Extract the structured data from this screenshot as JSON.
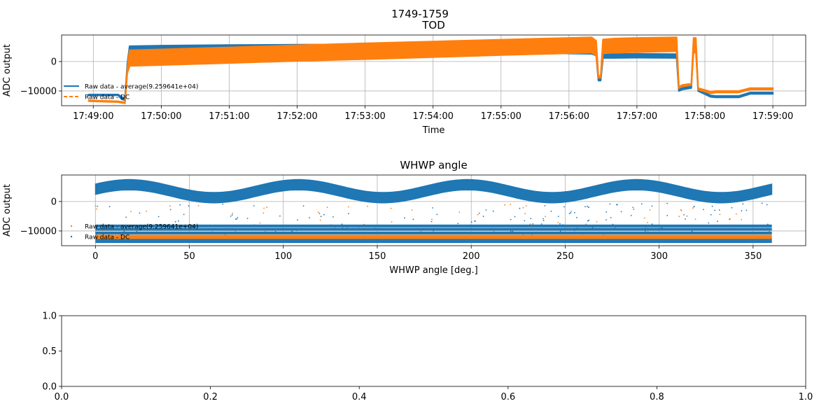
{
  "figure": {
    "suptitle": "1749-1759"
  },
  "colors": {
    "series1": "#1f77b4",
    "series2": "#ff7f0e",
    "grid": "#b0b0b0",
    "axes": "#000000"
  },
  "chart_data": [
    {
      "type": "line",
      "title": "TOD",
      "xlabel": "Time",
      "ylabel": "ADC output",
      "x_ticks": [
        "17:49:00",
        "17:50:00",
        "17:51:00",
        "17:52:00",
        "17:53:00",
        "17:54:00",
        "17:55:00",
        "17:56:00",
        "17:57:00",
        "17:58:00",
        "17:59:00"
      ],
      "xlim": [
        "17:48:32",
        "17:59:29"
      ],
      "y_ticks": [
        0,
        -10000
      ],
      "y_tick_labels": [
        "0",
        "−10000"
      ],
      "ylim": [
        -15000,
        9000
      ],
      "grid": true,
      "legend_position": "lower-left",
      "series": [
        {
          "name": "Raw data - average(9.259641e+04)",
          "style": "solid",
          "x": [
            "17:48:56",
            "17:49:22",
            "17:49:25",
            "17:49:28",
            "17:49:30",
            "17:49:32",
            "17:50:00",
            "17:51:00",
            "17:52:00",
            "17:53:00",
            "17:54:00",
            "17:55:00",
            "17:56:00",
            "17:56:20",
            "17:56:24",
            "17:56:26",
            "17:56:28",
            "17:56:30",
            "17:56:40",
            "17:57:00",
            "17:57:35",
            "17:57:37",
            "17:57:40",
            "17:57:48",
            "17:57:50",
            "17:57:52",
            "17:57:54",
            "17:58:05",
            "17:58:10",
            "17:58:30",
            "17:58:40",
            "17:59:00"
          ],
          "y_low": [
            -11500,
            -11500,
            -12800,
            -13200,
            -2000,
            3500,
            3500,
            3700,
            3900,
            4000,
            3700,
            3300,
            2700,
            2600,
            2000,
            -6500,
            -6500,
            1200,
            1200,
            1300,
            1200,
            -10000,
            -9500,
            -9000,
            5500,
            5500,
            -10000,
            -12000,
            -12200,
            -12200,
            -11000,
            -11000
          ],
          "y_high": [
            -11200,
            -11200,
            -12000,
            -12500,
            -1000,
            5200,
            5400,
            5600,
            5700,
            5800,
            5600,
            5200,
            4500,
            4300,
            3500,
            -5800,
            -5800,
            2500,
            2500,
            2600,
            2500,
            -9300,
            -8800,
            -8500,
            6200,
            6200,
            -9500,
            -11500,
            -11700,
            -11700,
            -10500,
            -10500
          ]
        },
        {
          "name": "Raw data - DC",
          "style": "dashed",
          "x": [
            "17:48:56",
            "17:49:22",
            "17:49:25",
            "17:49:28",
            "17:49:30",
            "17:49:32",
            "17:50:00",
            "17:51:00",
            "17:52:00",
            "17:53:00",
            "17:54:00",
            "17:55:00",
            "17:56:00",
            "17:56:20",
            "17:56:24",
            "17:56:26",
            "17:56:28",
            "17:56:30",
            "17:56:40",
            "17:57:00",
            "17:57:35",
            "17:57:37",
            "17:57:40",
            "17:57:48",
            "17:57:50",
            "17:57:52",
            "17:57:54",
            "17:58:05",
            "17:58:10",
            "17:58:30",
            "17:58:40",
            "17:59:00"
          ],
          "y_low": [
            -13500,
            -13800,
            -14000,
            -14200,
            -4000,
            -1500,
            -1200,
            -500,
            200,
            800,
            1500,
            2200,
            2800,
            3000,
            2000,
            -5500,
            -5500,
            2800,
            3000,
            3200,
            3500,
            -9000,
            -8500,
            -8000,
            3000,
            3000,
            -9500,
            -10800,
            -10500,
            -10500,
            -9500,
            -9500
          ],
          "y_high": [
            -13200,
            -13500,
            -13700,
            -13900,
            -2500,
            3800,
            4100,
            4800,
            5500,
            6200,
            6800,
            7400,
            8000,
            8200,
            7000,
            -5000,
            -5000,
            7500,
            7800,
            8000,
            8200,
            -8500,
            -8000,
            -7500,
            8000,
            8000,
            -9000,
            -10200,
            -10000,
            -10000,
            -9000,
            -9000
          ]
        }
      ]
    },
    {
      "type": "scatter",
      "title": "WHWP angle",
      "xlabel": "WHWP angle [deg.]",
      "ylabel": "ADC output",
      "x_ticks": [
        0,
        50,
        100,
        150,
        200,
        250,
        300,
        350
      ],
      "x_tick_labels": [
        "0",
        "50",
        "100",
        "150",
        "200",
        "250",
        "300",
        "350"
      ],
      "xlim": [
        -18,
        378
      ],
      "y_ticks": [
        0,
        -10000
      ],
      "y_tick_labels": [
        "0",
        "−10000"
      ],
      "ylim": [
        -15000,
        9000
      ],
      "grid": true,
      "legend_position": "lower-left",
      "series": [
        {
          "name": "Raw data - average(9.259641e+04)",
          "color": "#ff7f0e",
          "band": {
            "center": 3500,
            "amplitude": 2200,
            "half_width": 1800,
            "period_deg": 90,
            "peak_deg": 18,
            "x_range": [
              0,
              360
            ]
          },
          "constant_bands_y": [
            -12000
          ]
        },
        {
          "name": "Raw data - DC",
          "color": "#1f77b4",
          "band": {
            "center": 3500,
            "amplitude": 2200,
            "half_width": 1800,
            "period_deg": 90,
            "peak_deg": 18,
            "x_range": [
              0,
              360
            ]
          },
          "constant_bands_y": [
            -8300,
            -9400,
            -10700,
            -12700,
            -13600
          ]
        }
      ]
    },
    {
      "type": "line",
      "title": "",
      "xlabel": "",
      "ylabel": "",
      "x_ticks": [
        0.0,
        0.2,
        0.4,
        0.6,
        0.8,
        1.0
      ],
      "x_tick_labels": [
        "0.0",
        "0.2",
        "0.4",
        "0.6",
        "0.8",
        "1.0"
      ],
      "xlim": [
        0,
        1
      ],
      "y_ticks": [
        0.0,
        0.5,
        1.0
      ],
      "y_tick_labels": [
        "0.0",
        "0.5",
        "1.0"
      ],
      "ylim": [
        0,
        1
      ],
      "grid": false,
      "series": []
    }
  ]
}
